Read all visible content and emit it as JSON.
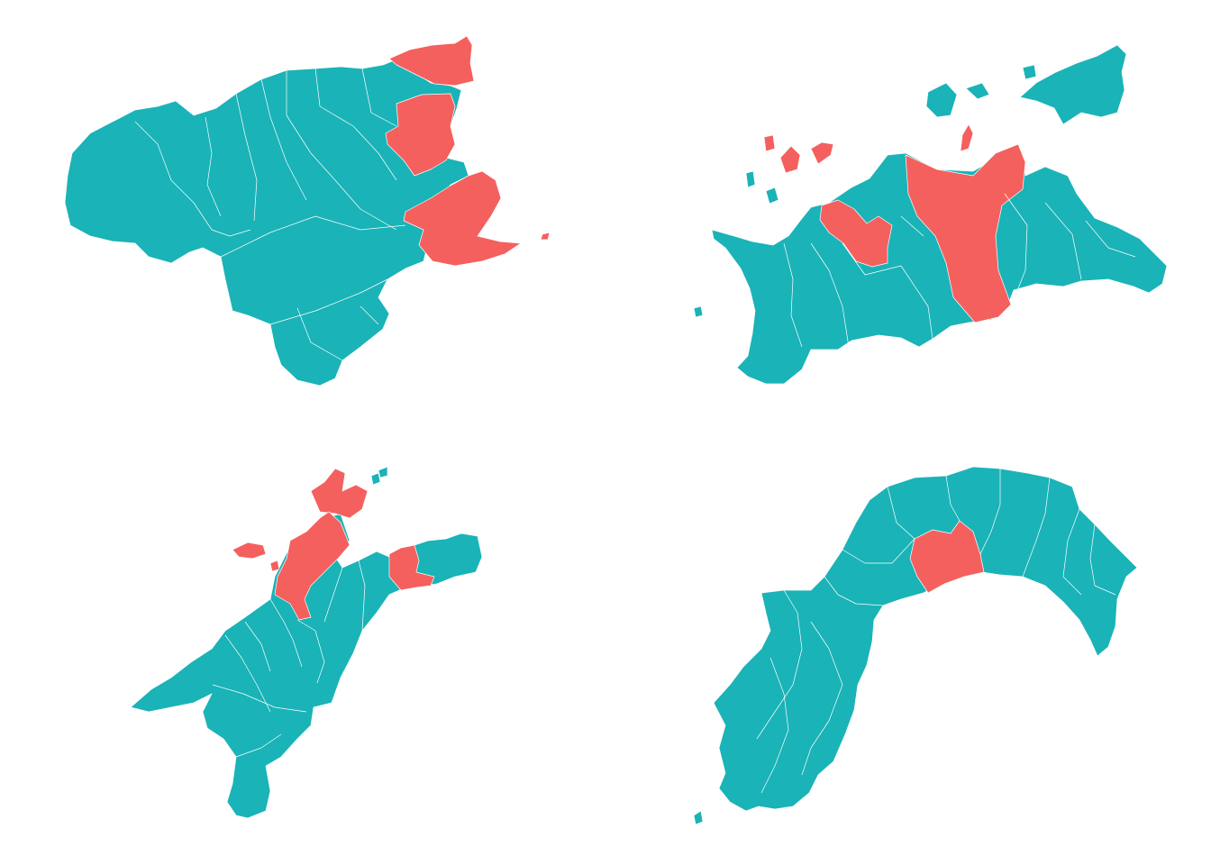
{
  "colors": {
    "background": "#ffffff",
    "base": "#1ab3b7",
    "highlight": "#f4605e",
    "border": "#ffffff"
  },
  "legend": null,
  "panels": [
    {
      "id": "tokushima",
      "highlighted_municipalities": 3
    },
    {
      "id": "kagawa",
      "highlighted_municipalities": 5
    },
    {
      "id": "ehime",
      "highlighted_municipalities": 4
    },
    {
      "id": "kochi",
      "highlighted_municipalities": 2
    }
  ]
}
